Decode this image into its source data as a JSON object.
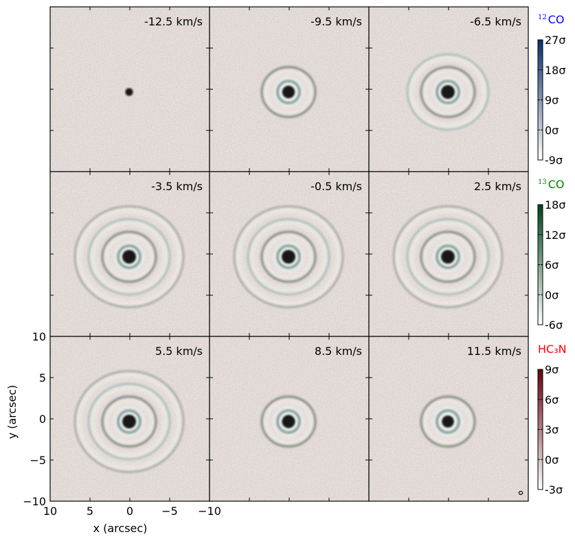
{
  "chart_data": {
    "type": "heatmap",
    "panels": [
      {
        "velocity_label": "-12.5 km/s",
        "velocity": -12.5,
        "rings": 0,
        "core": 0.45
      },
      {
        "velocity_label": "-9.5 km/s",
        "velocity": -9.5,
        "rings": 1,
        "core": 0.9
      },
      {
        "velocity_label": "-6.5 km/s",
        "velocity": -6.5,
        "rings": 2,
        "core": 1.0
      },
      {
        "velocity_label": "-3.5 km/s",
        "velocity": -3.5,
        "rings": 3,
        "core": 1.0
      },
      {
        "velocity_label": "-0.5 km/s",
        "velocity": -0.5,
        "rings": 3,
        "core": 1.0
      },
      {
        "velocity_label": "2.5 km/s",
        "velocity": 2.5,
        "rings": 3,
        "core": 1.0
      },
      {
        "velocity_label": "5.5 km/s",
        "velocity": 5.5,
        "rings": 3,
        "core": 1.0
      },
      {
        "velocity_label": "8.5 km/s",
        "velocity": 8.5,
        "rings": 1,
        "core": 0.95
      },
      {
        "velocity_label": "11.5 km/s",
        "velocity": 11.5,
        "rings": 1,
        "core": 0.85
      }
    ],
    "xlabel": "x (arcsec)",
    "ylabel": "y (arcsec)",
    "xlim": [
      10,
      -10
    ],
    "ylim": [
      -10,
      10
    ],
    "xticks": [
      10,
      5,
      0,
      -5,
      -10
    ],
    "yticks": [
      -10,
      -5,
      0,
      5,
      10
    ],
    "xtick_labels": [
      "10",
      "5",
      "0",
      "−5",
      "−10"
    ],
    "ytick_labels": [
      "−10",
      "−5",
      "0",
      "5",
      "10"
    ],
    "colorbars": [
      {
        "name_prefix": "12",
        "name": "CO",
        "color": "#0000ff",
        "cmap": [
          "#ffffff",
          "#08306b"
        ],
        "range": [
          -9,
          27
        ],
        "ticks": [
          "27σ",
          "18σ",
          "9σ",
          "0σ",
          "-9σ"
        ]
      },
      {
        "name_prefix": "13",
        "name": "CO",
        "color": "#008000",
        "cmap": [
          "#ffffff",
          "#00441b"
        ],
        "range": [
          -6,
          18
        ],
        "ticks": [
          "18σ",
          "12σ",
          "6σ",
          "0σ",
          "-6σ"
        ]
      },
      {
        "name_prefix": "",
        "name": "HC₃N",
        "color": "#ff0000",
        "cmap": [
          "#ffffff",
          "#67000d"
        ],
        "range": [
          -3,
          9
        ],
        "ticks": [
          "9σ",
          "6σ",
          "3σ",
          "0σ",
          "-3σ"
        ]
      }
    ]
  }
}
